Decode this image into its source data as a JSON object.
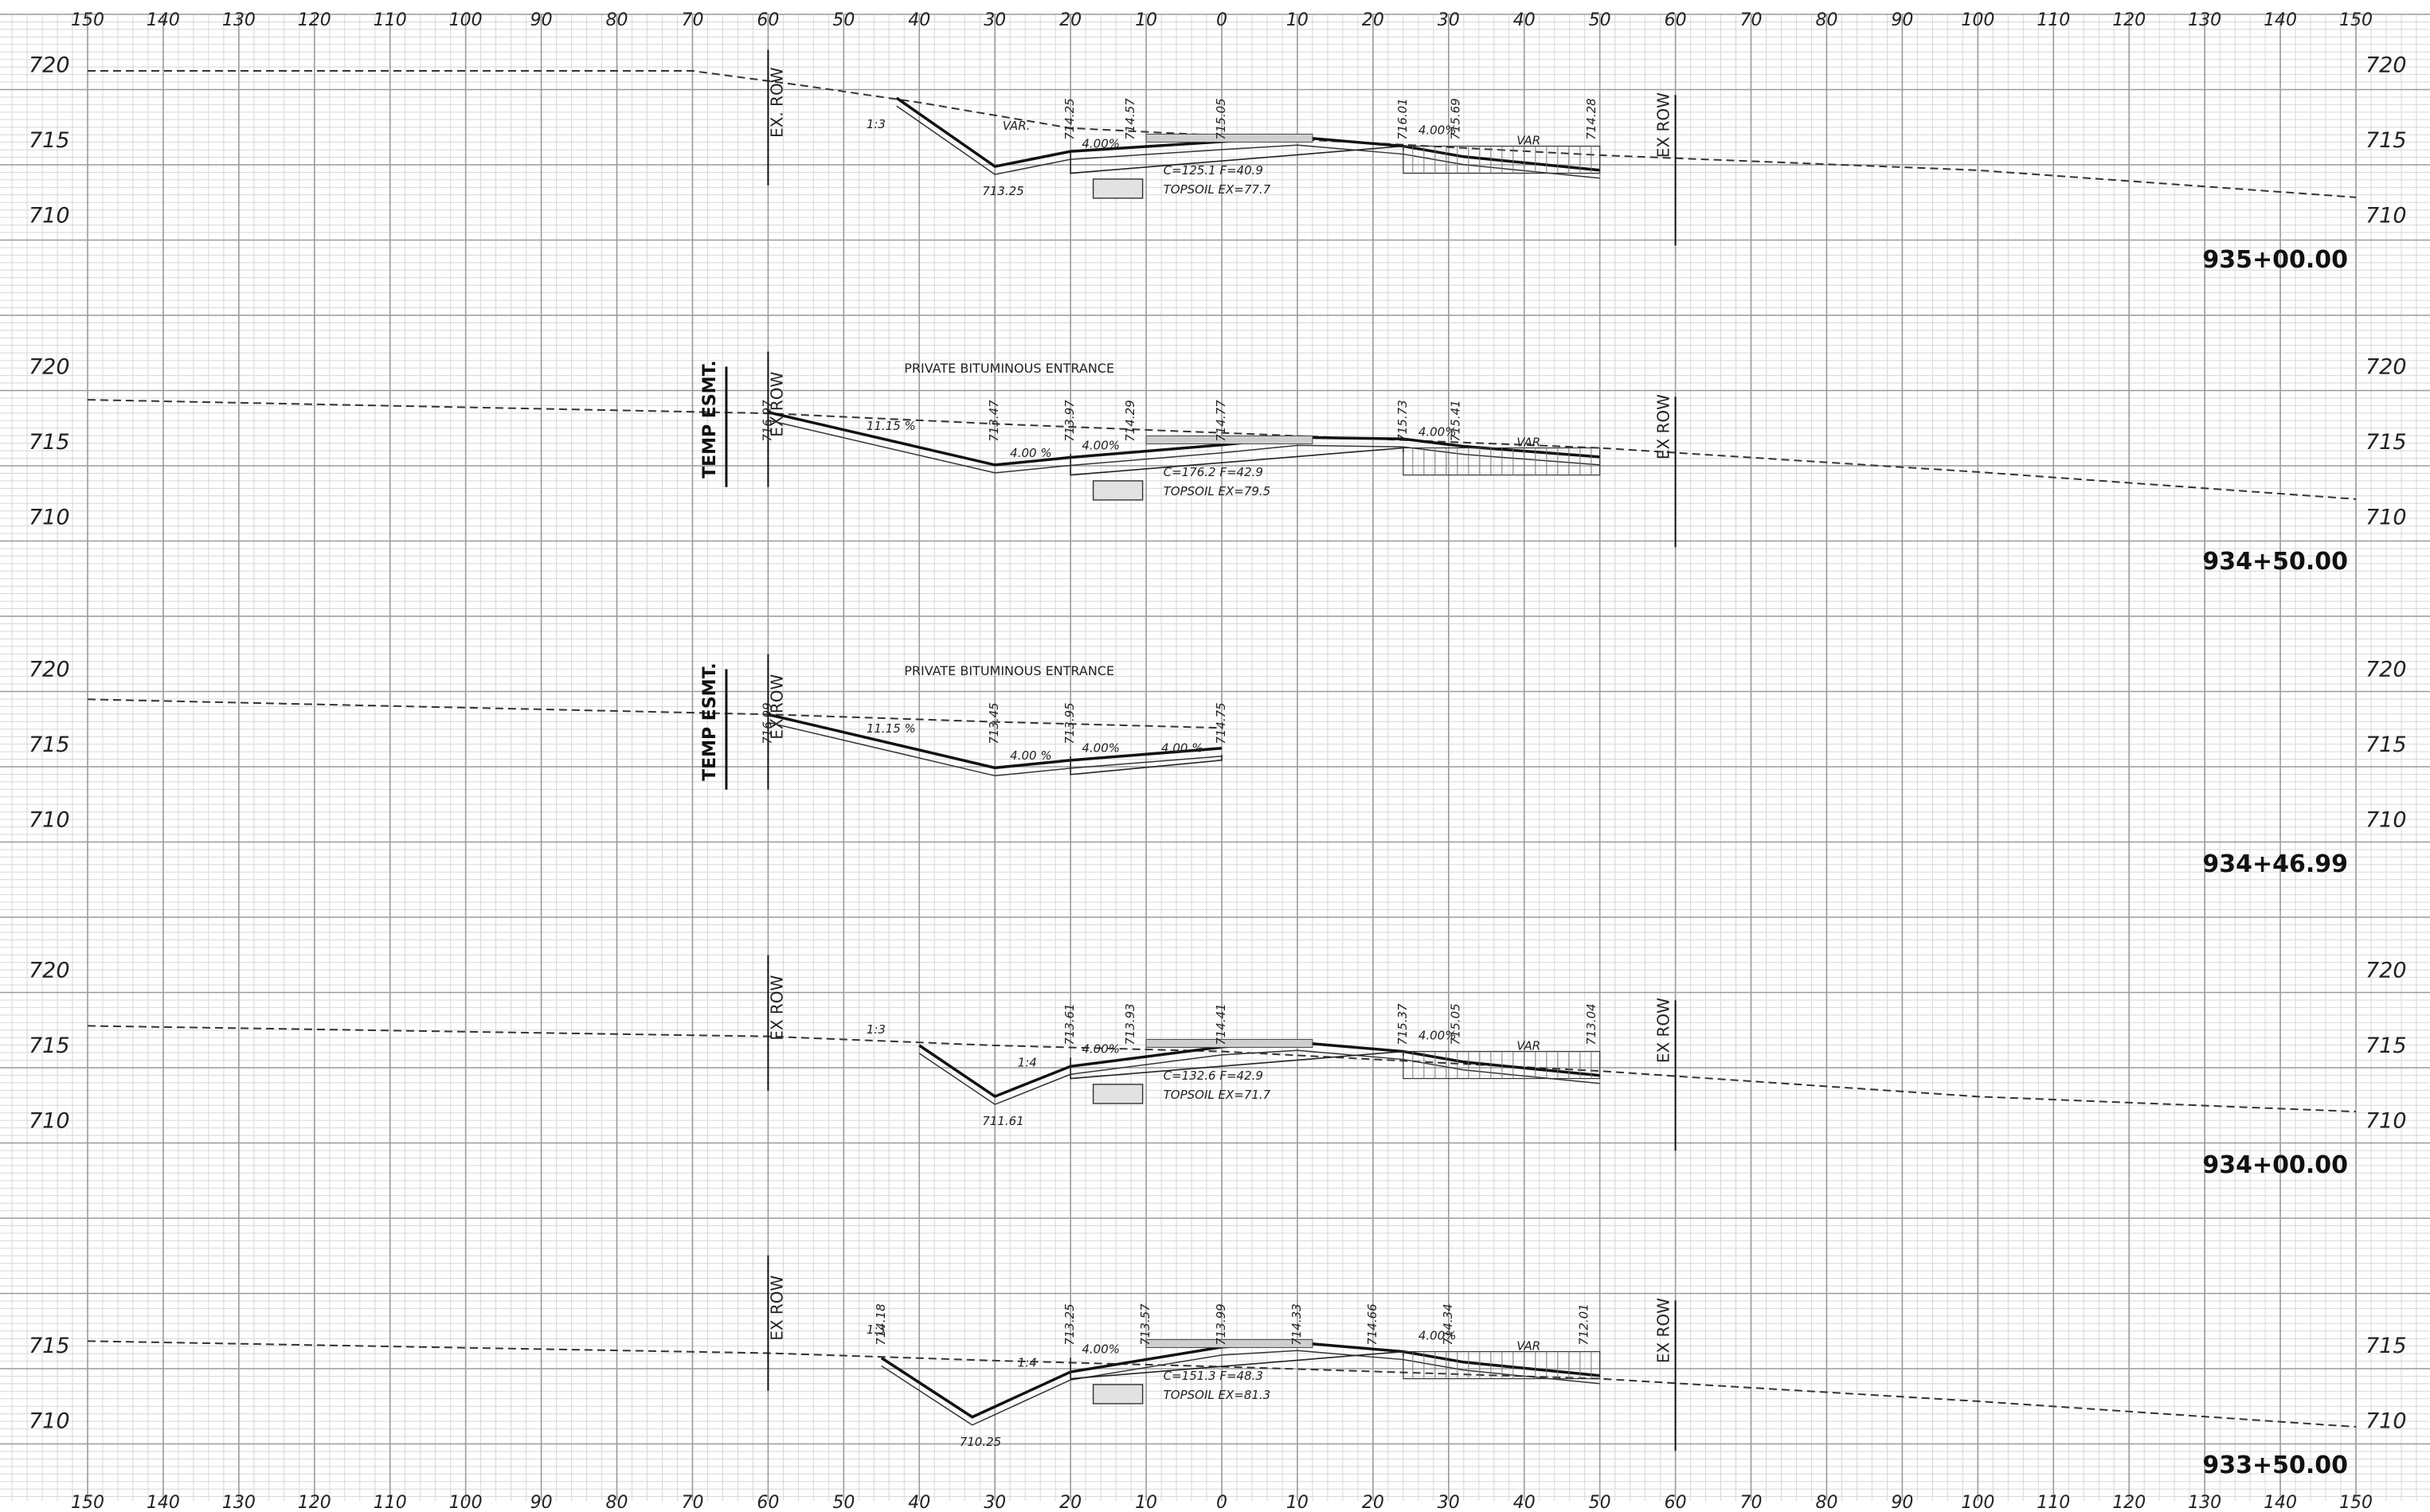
{
  "grid": {
    "ticks": [
      "150",
      "140",
      "130",
      "120",
      "110",
      "100",
      "90",
      "80",
      "70",
      "60",
      "50",
      "40",
      "30",
      "20",
      "10",
      "0",
      "10",
      "20",
      "30",
      "40",
      "50",
      "60",
      "70",
      "80",
      "90",
      "100",
      "110",
      "120",
      "130",
      "140",
      "150"
    ],
    "major_color": "#9a9a9a",
    "minor_color": "#d7d7d7"
  },
  "sections": [
    {
      "station": "935+00.00",
      "elev_labels": [
        "720",
        "715",
        "710"
      ],
      "row_left": "EX. ROW",
      "row_right": "EX ROW",
      "entrance": "",
      "cut_fill": "C=125.1  F=40.9",
      "topsoil": "TOPSOIL  EX=77.7",
      "ditch_elev": "713.25",
      "slope_left": "1:3",
      "slope_var": "VAR.",
      "grade_left": "4.00%",
      "grade_right": "4.00%",
      "shoulder_var": "VAR",
      "point_elevs": [
        "714.25",
        "714.57",
        "715.05",
        "716.01",
        "715.69",
        "714.28"
      ]
    },
    {
      "station": "934+50.00",
      "elev_labels": [
        "720",
        "715",
        "710"
      ],
      "row_left": "EX ROW",
      "row_right": "EX ROW",
      "temp_esmt": "TEMP ESMT.",
      "entrance": "PRIVATE BITUMINOUS ENTRANCE",
      "cut_fill": "C=176.2  F=42.9",
      "topsoil": "TOPSOIL  EX=79.5",
      "slope_left": "11.15 %",
      "grade_mid": "4.00 %",
      "grade_left": "4.00%",
      "grade_right": "4.00%",
      "shoulder_var": "VAR",
      "point_elevs": [
        "716.97",
        "713.47",
        "713.97",
        "714.29",
        "714.77",
        "715.73",
        "715.41"
      ]
    },
    {
      "station": "934+46.99",
      "elev_labels": [
        "720",
        "715",
        "710"
      ],
      "row_left": "EX ROW",
      "temp_esmt": "TEMP ESMT.",
      "entrance": "PRIVATE BITUMINOUS ENTRANCE",
      "slope_left": "11.15 %",
      "grade_mid": "4.00 %",
      "grade_left": "4.00%",
      "grade_right": "4.00 %",
      "point_elevs": [
        "716.99",
        "713.45",
        "713.95",
        "714.75"
      ]
    },
    {
      "station": "934+00.00",
      "elev_labels": [
        "720",
        "715",
        "710"
      ],
      "row_left": "EX ROW",
      "row_right": "EX ROW",
      "entrance": "",
      "cut_fill": "C=132.6  F=42.9",
      "topsoil": "TOPSOIL  EX=71.7",
      "ditch_elev": "711.61",
      "slope_left": "1:3",
      "slope_mid": "1:4",
      "grade_left": "4.00%",
      "grade_right": "4.00%",
      "shoulder_var": "VAR",
      "point_elevs": [
        "713.61",
        "713.93",
        "714.41",
        "715.37",
        "715.05",
        "713.04"
      ]
    },
    {
      "station": "933+50.00",
      "elev_labels": [
        "715",
        "710"
      ],
      "row_left": "EX ROW",
      "row_right": "EX ROW",
      "entrance": "",
      "cut_fill": "C=151.3  F=48.3",
      "topsoil": "TOPSOIL  EX=81.3",
      "ditch_elev": "710.25",
      "slope_left": "1:3",
      "slope_mid": "1:4",
      "grade_left": "4.00%",
      "grade_right": "4.00%",
      "shoulder_var": "VAR",
      "point_elevs": [
        "714.18",
        "713.25",
        "713.57",
        "713.99",
        "714.33",
        "714.66",
        "714.34",
        "712.01"
      ]
    }
  ]
}
